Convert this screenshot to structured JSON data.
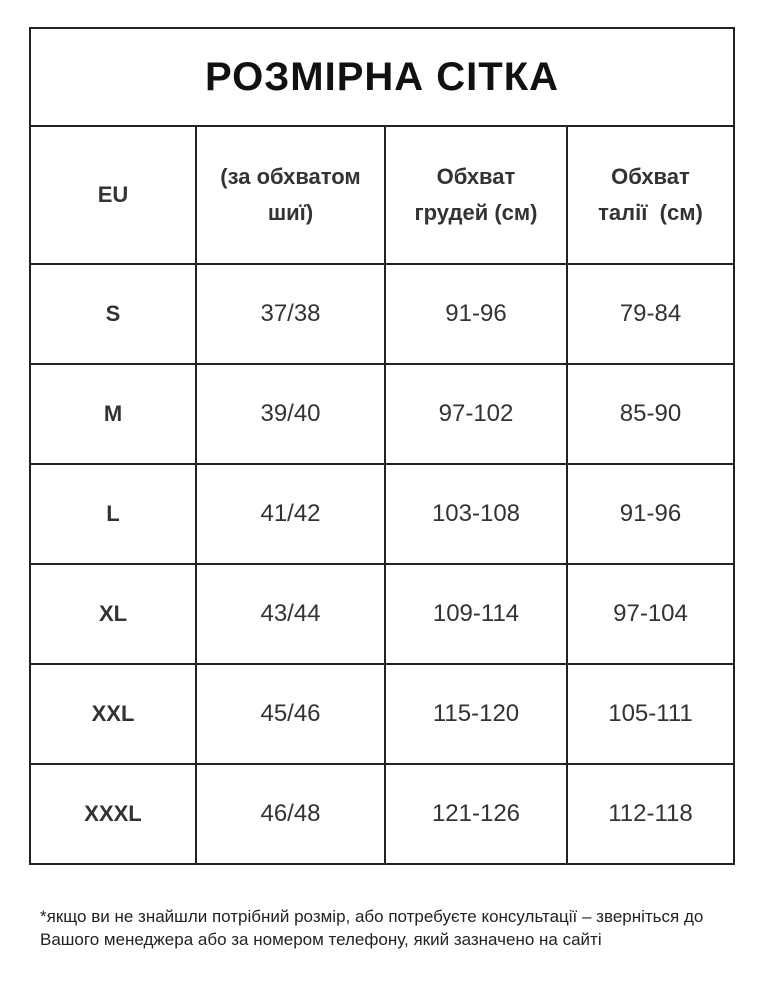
{
  "title": "РОЗМІРНА СІТКА",
  "headers": [
    "EU",
    "(за обхватом шиї)",
    "Обхват грудей (см)",
    "Обхват талії  (см)"
  ],
  "rows": [
    [
      "S",
      "37/38",
      "91-96",
      "79-84"
    ],
    [
      "M",
      "39/40",
      "97-102",
      "85-90"
    ],
    [
      "L",
      "41/42",
      "103-108",
      "91-96"
    ],
    [
      "XL",
      "43/44",
      "109-114",
      "97-104"
    ],
    [
      "XXL",
      "45/46",
      "115-120",
      "105-111"
    ],
    [
      "XXXL",
      "46/48",
      "121-126",
      "112-118"
    ]
  ],
  "footnote": "*якщо ви не знайшли потрібний розмір, або потребуєте консультації – зверніться до Вашого менеджера або за номером телефону, який зазначено на сайті"
}
